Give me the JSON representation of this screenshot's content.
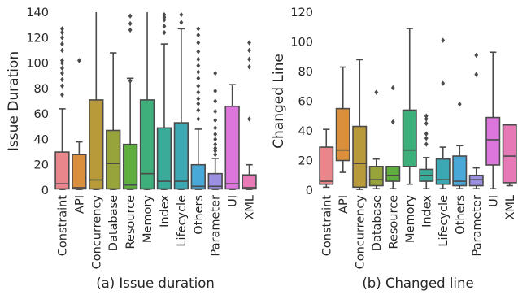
{
  "chart_data": [
    {
      "type": "box",
      "caption": "(a) Issue duration",
      "ylabel": "Issue Duration",
      "ylim": [
        0,
        140
      ],
      "yticks": [
        0,
        20,
        40,
        60,
        80,
        100,
        120,
        140
      ],
      "categories": [
        "Constraint",
        "API",
        "Concurrency",
        "Database",
        "Resource",
        "Memory",
        "Index",
        "Lifecycle",
        "Others",
        "Parameter",
        "UI",
        "XML"
      ],
      "colors": [
        "#e8868b",
        "#d98f3c",
        "#b99a3a",
        "#97a33b",
        "#5fad3f",
        "#3eae7a",
        "#39ab98",
        "#3ba8b3",
        "#4aa8d8",
        "#9a8fe0",
        "#dc76dd",
        "#e679b6"
      ],
      "boxes": [
        {
          "q1": 1,
          "median": 5,
          "q3": 30,
          "whislo": 0,
          "whishi": 64,
          "fliers": [
            75,
            82,
            87,
            92,
            96,
            100,
            102,
            110,
            115,
            120,
            124,
            127
          ]
        },
        {
          "q1": 1,
          "median": 2,
          "q3": 28,
          "whislo": 0,
          "whishi": 38,
          "fliers": [
            102
          ]
        },
        {
          "q1": 1,
          "median": 8,
          "q3": 71,
          "whislo": 0,
          "whishi": 145,
          "fliers": []
        },
        {
          "q1": 1,
          "median": 21,
          "q3": 47,
          "whislo": 0,
          "whishi": 108,
          "fliers": []
        },
        {
          "q1": 1,
          "median": 4,
          "q3": 36,
          "whislo": 0,
          "whishi": 88,
          "fliers": [
            86,
            126,
            131,
            137
          ]
        },
        {
          "q1": 1,
          "median": 13,
          "q3": 71,
          "whislo": 0,
          "whishi": 145,
          "fliers": []
        },
        {
          "q1": 1,
          "median": 7,
          "q3": 49,
          "whislo": 0,
          "whishi": 115,
          "fliers": [
            124,
            129,
            134,
            136,
            138
          ]
        },
        {
          "q1": 1,
          "median": 7,
          "q3": 53,
          "whislo": 0,
          "whishi": 127,
          "fliers": [
            132,
            138
          ]
        },
        {
          "q1": 1,
          "median": 3,
          "q3": 20,
          "whislo": 0,
          "whishi": 48,
          "fliers": [
            56,
            63,
            68,
            72,
            77,
            82,
            88,
            93,
            98,
            103,
            109,
            116,
            122,
            127
          ]
        },
        {
          "q1": 1,
          "median": 3,
          "q3": 13,
          "whislo": 0,
          "whishi": 25,
          "fliers": [
            28,
            31,
            33,
            36,
            40,
            44,
            49,
            55,
            62,
            70,
            78,
            92
          ]
        },
        {
          "q1": 1,
          "median": 5,
          "q3": 66,
          "whislo": 0,
          "whishi": 83,
          "fliers": []
        },
        {
          "q1": 1,
          "median": 2,
          "q3": 12,
          "whislo": 0,
          "whishi": 20,
          "fliers": [
            56,
            97,
            103,
            110,
            116
          ]
        }
      ]
    },
    {
      "type": "box",
      "caption": "(b) Changed line",
      "ylabel": "Changed Line",
      "ylim": [
        0,
        120
      ],
      "yticks": [
        0,
        20,
        40,
        60,
        80,
        100,
        120
      ],
      "categories": [
        "Constraint",
        "API",
        "Concurrency",
        "Database",
        "Resource",
        "Memory",
        "Index",
        "Lifecycle",
        "Others",
        "Parameter",
        "UI",
        "XML"
      ],
      "colors": [
        "#e8868b",
        "#d98f3c",
        "#b99a3a",
        "#97a33b",
        "#5fad3f",
        "#3eae7a",
        "#39ab98",
        "#3ba8b3",
        "#4aa8d8",
        "#9a8fe0",
        "#dc76dd",
        "#e679b6"
      ],
      "boxes": [
        {
          "q1": 4,
          "median": 6,
          "q3": 29,
          "whislo": 2,
          "whishi": 41,
          "fliers": []
        },
        {
          "q1": 20,
          "median": 27,
          "q3": 55,
          "whislo": 12,
          "whishi": 83,
          "fliers": []
        },
        {
          "q1": 2,
          "median": 18,
          "q3": 43,
          "whislo": 0,
          "whishi": 88,
          "fliers": []
        },
        {
          "q1": 3,
          "median": 7,
          "q3": 16,
          "whislo": 1,
          "whishi": 21,
          "fliers": [
            66
          ]
        },
        {
          "q1": 6,
          "median": 10,
          "q3": 16,
          "whislo": 1,
          "whishi": 16,
          "fliers": [
            46,
            69
          ]
        },
        {
          "q1": 16,
          "median": 27,
          "q3": 54,
          "whislo": 4,
          "whishi": 109,
          "fliers": []
        },
        {
          "q1": 6,
          "median": 10,
          "q3": 14,
          "whislo": 1,
          "whishi": 22,
          "fliers": [
            31,
            35,
            38,
            45,
            48,
            50
          ]
        },
        {
          "q1": 4,
          "median": 7,
          "q3": 21,
          "whislo": 1,
          "whishi": 29,
          "fliers": [
            72,
            101
          ]
        },
        {
          "q1": 3,
          "median": 6,
          "q3": 23,
          "whislo": 1,
          "whishi": 30,
          "fliers": [
            58
          ]
        },
        {
          "q1": 3,
          "median": 7,
          "q3": 10,
          "whislo": 1,
          "whishi": 15,
          "fliers": [
            78,
            91
          ]
        },
        {
          "q1": 17,
          "median": 34,
          "q3": 49,
          "whislo": 1,
          "whishi": 93,
          "fliers": []
        },
        {
          "q1": 5,
          "median": 23,
          "q3": 44,
          "whislo": 3,
          "whishi": 44,
          "fliers": []
        }
      ]
    }
  ]
}
